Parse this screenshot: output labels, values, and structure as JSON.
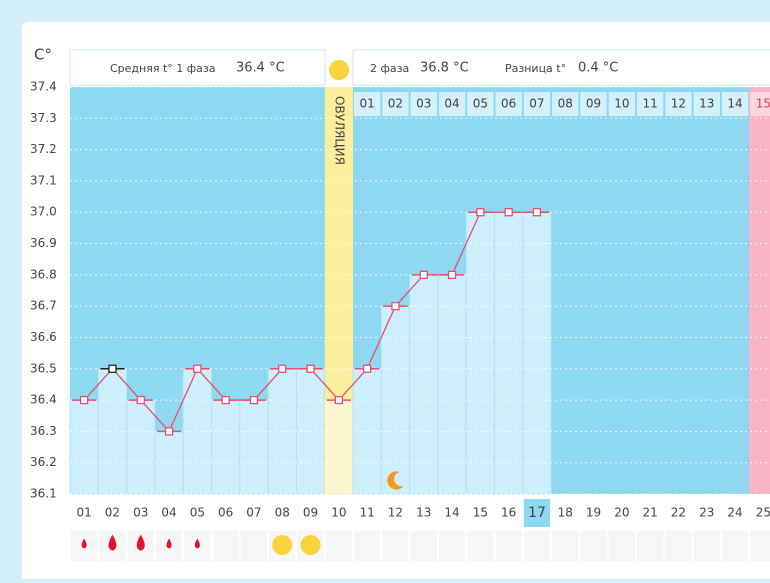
{
  "summary": {
    "phase1_label": "Средняя t° 1 фаза",
    "phase1_value": "36.4 °C",
    "phase2_label": "2 фаза",
    "phase2_value": "36.8 °C",
    "diff_label": "Разница t°",
    "diff_value": "0.4 °C"
  },
  "chart_data": {
    "type": "line",
    "y_unit": "C°",
    "ovulation_label": "ОВУЛЯЦИЯ",
    "categories": [
      "01",
      "02",
      "03",
      "04",
      "05",
      "06",
      "07",
      "08",
      "09",
      "10",
      "11",
      "12",
      "13",
      "14",
      "15",
      "16",
      "17",
      "18",
      "19",
      "20",
      "21",
      "22",
      "23",
      "24",
      "25"
    ],
    "phase2_days": [
      "01",
      "02",
      "03",
      "04",
      "05",
      "06",
      "07",
      "08",
      "09",
      "10",
      "11",
      "12",
      "13",
      "14",
      "15"
    ],
    "values": [
      36.4,
      36.5,
      36.4,
      36.3,
      36.5,
      36.4,
      36.4,
      36.5,
      36.5,
      36.4,
      36.5,
      36.7,
      36.8,
      36.8,
      37.0,
      37.0,
      37.0,
      null,
      null,
      null,
      null,
      null,
      null,
      null,
      null
    ],
    "color": "#e8506e",
    "ylim": [
      36.1,
      37.4
    ],
    "yticks": [
      36.1,
      36.2,
      36.3,
      36.4,
      36.5,
      36.6,
      36.7,
      36.8,
      36.9,
      {
        "value": 37,
        "label": "37.0"
      },
      37.1,
      37.2,
      37.3,
      37.4
    ],
    "grid": true
  }
}
